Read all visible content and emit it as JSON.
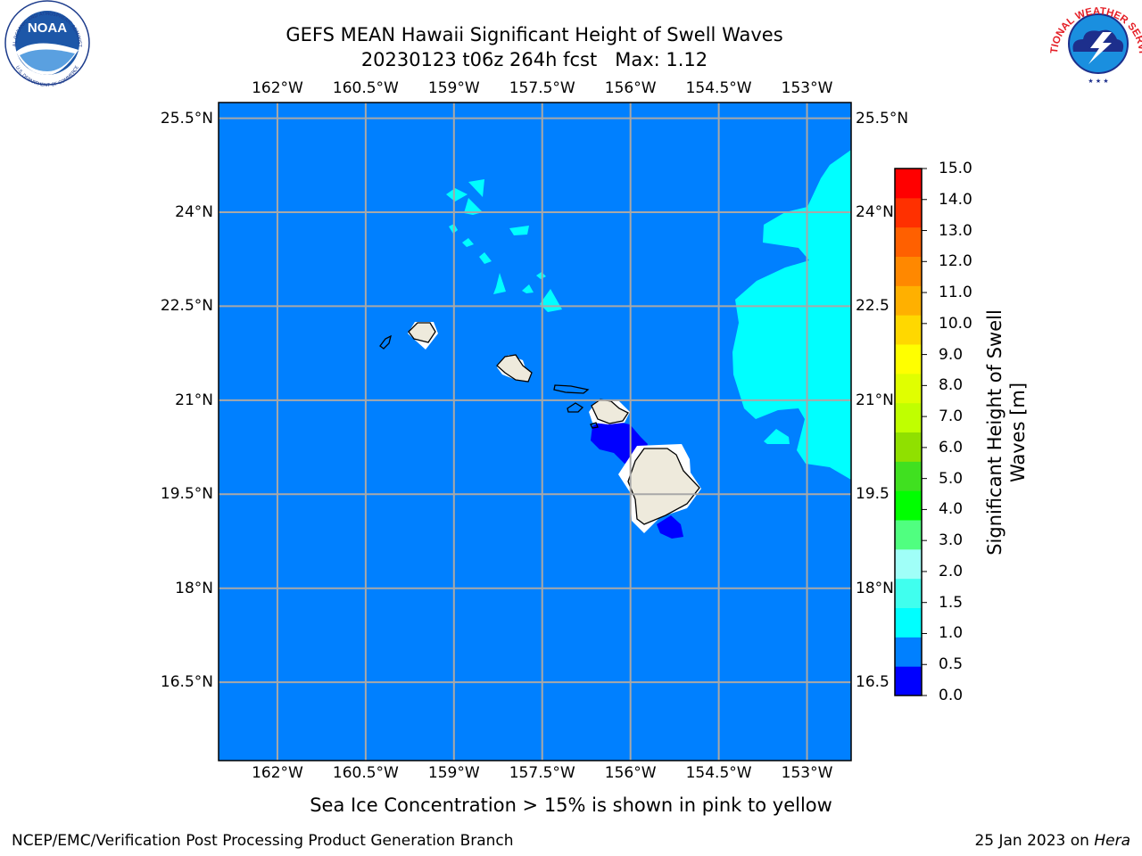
{
  "title_line1": "GEFS MEAN Hawaii Significant Height of Swell Waves",
  "title_line2": "20230123 t06z 264h fcst   Max: 1.12",
  "lon_labels": [
    "162°W",
    "160.5°W",
    "159°W",
    "157.5°W",
    "156°W",
    "154.5°W",
    "153°W"
  ],
  "lon_values": [
    -162,
    -160.5,
    -159,
    -157.5,
    -156,
    -154.5,
    -153
  ],
  "lat_labels_left": [
    "25.5°N",
    "24°N",
    "22.5°N",
    "21°N",
    "19.5°N",
    "18°N",
    "16.5°N"
  ],
  "lat_labels_right": [
    "25.5°N",
    "24°N",
    "22.5",
    "21°N",
    "19.5",
    "18°N",
    "16.5"
  ],
  "lat_values": [
    25.5,
    24,
    22.5,
    21,
    19.5,
    18,
    16.5
  ],
  "map_extent": {
    "lon_min": -163,
    "lon_max": -152.25,
    "lat_min": 15.25,
    "lat_max": 25.75
  },
  "colorbar": {
    "label_line1": "Significant Height of Swell",
    "label_line2": "Waves [m]",
    "tick_labels": [
      "0.0",
      "0.5",
      "1.0",
      "1.5",
      "2.0",
      "3.0",
      "4.0",
      "5.0",
      "6.0",
      "7.0",
      "8.0",
      "9.0",
      "10.0",
      "11.0",
      "12.0",
      "13.0",
      "14.0",
      "15.0"
    ],
    "colors": [
      "#0000ff",
      "#0080ff",
      "#00ffff",
      "#40ffee",
      "#a0fff8",
      "#50ff80",
      "#00ff00",
      "#40e020",
      "#90e000",
      "#c0ff00",
      "#e0ff00",
      "#ffff00",
      "#ffd800",
      "#ffb000",
      "#ff8800",
      "#ff6000",
      "#ff3000",
      "#ff0000"
    ]
  },
  "colors": {
    "ocean": "#0080ff",
    "low": "#0000ff",
    "cyan": "#00ffff",
    "land": "#eeeadc",
    "grid": "#a8a8a8"
  },
  "note": "Sea Ice Concentration > 15% is shown in pink to yellow",
  "footer_left": "NCEP/EMC/Verification Post Processing Product Generation Branch",
  "footer_right_date": "25 Jan 2023 on ",
  "footer_right_machine": "Hera",
  "logo_noaa_text": "NOAA",
  "logo_noaa_ring_top": "NATIONAL OCEANIC AND ATMOSPHERIC ADMINISTRATION",
  "logo_noaa_ring_bottom": "U.S. DEPARTMENT OF COMMERCE",
  "logo_nws_ring": "NATIONAL WEATHER SERVICE"
}
